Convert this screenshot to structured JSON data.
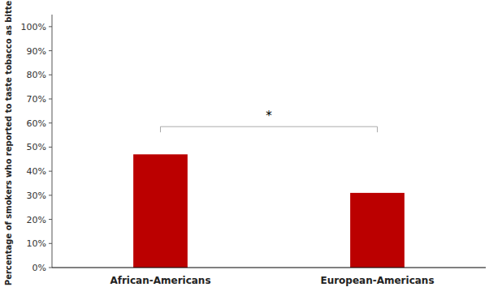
{
  "chart_data": {
    "type": "bar",
    "categories": [
      "African-Americans",
      "European-Americans"
    ],
    "values": [
      0.47,
      0.31
    ],
    "color": "#bb0000",
    "y_label": "Percentage of smokers who reported to taste tobacco as bitter",
    "ylim": [
      0,
      1.05
    ],
    "yticks": [
      {
        "value": 0.0,
        "label": "0%"
      },
      {
        "value": 0.1,
        "label": "10%"
      },
      {
        "value": 0.2,
        "label": "20%"
      },
      {
        "value": 0.3,
        "label": "30%"
      },
      {
        "value": 0.4,
        "label": "40%"
      },
      {
        "value": 0.5,
        "label": "50%"
      },
      {
        "value": 0.6,
        "label": "60%"
      },
      {
        "value": 0.7,
        "label": "70%"
      },
      {
        "value": 0.8,
        "label": "80%"
      },
      {
        "value": 0.9,
        "label": "90%"
      },
      {
        "value": 1.0,
        "label": "100%"
      }
    ],
    "grid": false,
    "annotations": [
      {
        "text": "*",
        "y": 0.61,
        "bracket_y": 0.585,
        "color": "#aaaaaa"
      }
    ]
  }
}
